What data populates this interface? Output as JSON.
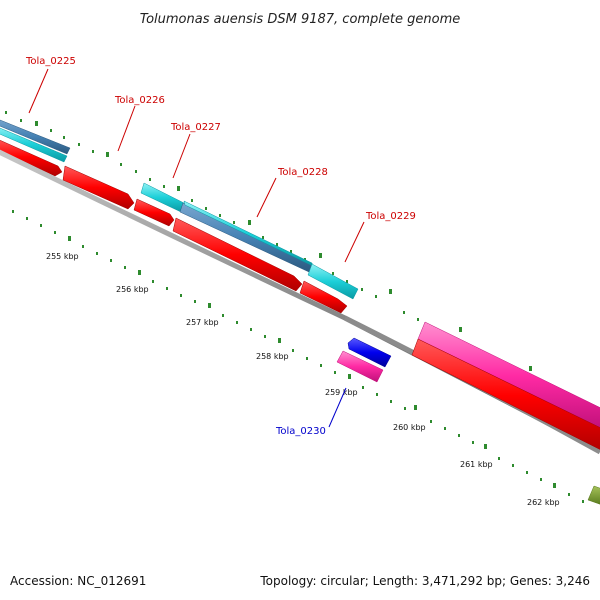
{
  "title": "Tolumonas auensis DSM 9187, complete genome",
  "footer": {
    "accession": "Accession: NC_012691",
    "summary": "Topology: circular; Length: 3,471,292 bp; Genes: 3,246"
  },
  "gene_labels": [
    {
      "text": "Tola_0225",
      "color": "#cc0000"
    },
    {
      "text": "Tola_0226",
      "color": "#cc0000"
    },
    {
      "text": "Tola_0227",
      "color": "#cc0000"
    },
    {
      "text": "Tola_0228",
      "color": "#cc0000"
    },
    {
      "text": "Tola_0229",
      "color": "#cc0000"
    },
    {
      "text": "Tola_0230",
      "color": "#0000cc"
    }
  ],
  "scale_labels": [
    "255 kbp",
    "256 kbp",
    "257 kbp",
    "258 kbp",
    "259 kbp",
    "260 kbp",
    "261 kbp",
    "262 kbp"
  ],
  "colors": {
    "cds": "#ff0000",
    "trna": "#00c8d0",
    "steelblue": "#4682b4",
    "pink": "#ff3ca8",
    "reverse": "#0000ee",
    "olive": "#6b8e23",
    "backbone": "#8c8c8c",
    "tick": "#2e8b2e"
  }
}
